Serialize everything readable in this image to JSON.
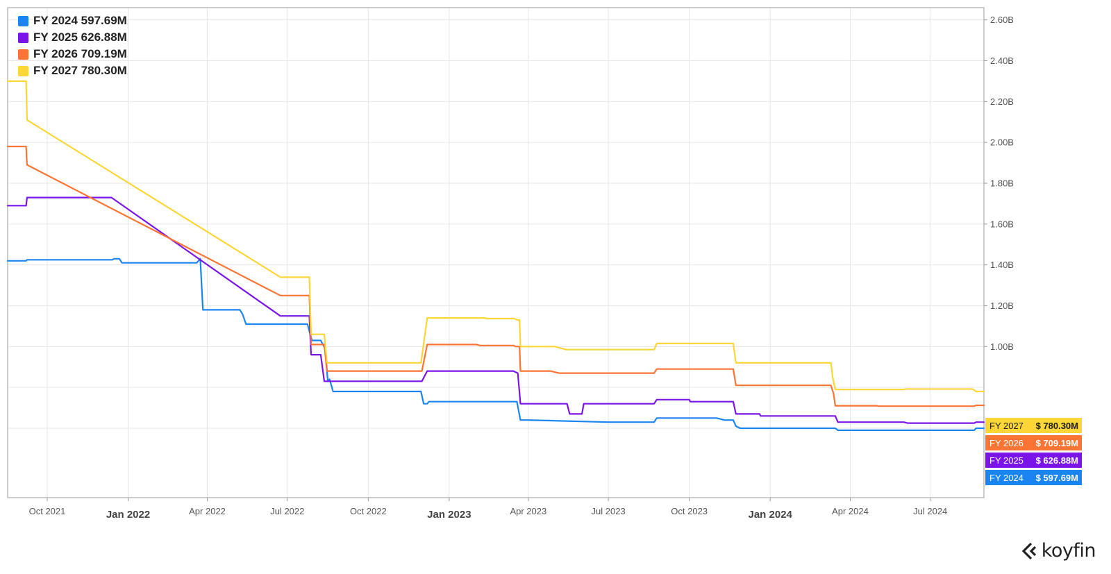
{
  "brand": {
    "name": "koyfin"
  },
  "chart_data": {
    "type": "line",
    "title": "",
    "xlabel": "",
    "ylabel": "",
    "x_range": [
      "2021-08-17",
      "2024-08-31"
    ],
    "ylim": [
      0.26,
      2.66
    ],
    "y_ticks": [
      {
        "value": 2.6,
        "label": "2.60B"
      },
      {
        "value": 2.4,
        "label": "2.40B"
      },
      {
        "value": 2.2,
        "label": "2.20B"
      },
      {
        "value": 2.0,
        "label": "2.00B"
      },
      {
        "value": 1.8,
        "label": "1.80B"
      },
      {
        "value": 1.6,
        "label": "1.60B"
      },
      {
        "value": 1.4,
        "label": "1.40B"
      },
      {
        "value": 1.2,
        "label": "1.20B"
      },
      {
        "value": 1.0,
        "label": "1.00B"
      }
    ],
    "y_grid_extra": [
      0.8,
      0.6
    ],
    "x_ticks": [
      {
        "date": "2021-10-01",
        "label": "Oct 2021",
        "major": false
      },
      {
        "date": "2022-01-01",
        "label": "Jan 2022",
        "major": true
      },
      {
        "date": "2022-04-01",
        "label": "Apr 2022",
        "major": false
      },
      {
        "date": "2022-07-01",
        "label": "Jul 2022",
        "major": false
      },
      {
        "date": "2022-10-01",
        "label": "Oct 2022",
        "major": false
      },
      {
        "date": "2023-01-01",
        "label": "Jan 2023",
        "major": true
      },
      {
        "date": "2023-04-01",
        "label": "Apr 2023",
        "major": false
      },
      {
        "date": "2023-07-01",
        "label": "Jul 2023",
        "major": false
      },
      {
        "date": "2023-10-01",
        "label": "Oct 2023",
        "major": false
      },
      {
        "date": "2024-01-01",
        "label": "Jan 2024",
        "major": true
      },
      {
        "date": "2024-04-01",
        "label": "Apr 2024",
        "major": false
      },
      {
        "date": "2024-07-01",
        "label": "Jul 2024",
        "major": false
      }
    ],
    "grid": true,
    "legend_position": "top-left",
    "series": [
      {
        "name": "FY 2024",
        "legend_label": "FY 2024 597.69M",
        "tag_value": "$ 597.69M",
        "color": "#1a85f0",
        "points": [
          [
            "2021-08-17",
            1.42
          ],
          [
            "2021-09-07",
            1.42
          ],
          [
            "2021-09-08",
            1.425
          ],
          [
            "2021-12-14",
            1.425
          ],
          [
            "2021-12-16",
            1.43
          ],
          [
            "2021-12-22",
            1.43
          ],
          [
            "2021-12-25",
            1.41
          ],
          [
            "2022-03-20",
            1.41
          ],
          [
            "2022-03-24",
            1.43
          ],
          [
            "2022-03-27",
            1.18
          ],
          [
            "2022-05-08",
            1.18
          ],
          [
            "2022-05-11",
            1.16
          ],
          [
            "2022-05-15",
            1.11
          ],
          [
            "2022-07-24",
            1.11
          ],
          [
            "2022-07-27",
            1.06
          ],
          [
            "2022-07-29",
            1.03
          ],
          [
            "2022-08-08",
            1.03
          ],
          [
            "2022-08-13",
            0.99
          ],
          [
            "2022-08-16",
            0.83
          ],
          [
            "2022-08-18",
            0.84
          ],
          [
            "2022-08-22",
            0.78
          ],
          [
            "2022-11-30",
            0.78
          ],
          [
            "2022-12-03",
            0.72
          ],
          [
            "2022-12-07",
            0.72
          ],
          [
            "2022-12-09",
            0.73
          ],
          [
            "2023-03-19",
            0.73
          ],
          [
            "2023-03-23",
            0.64
          ],
          [
            "2023-04-01",
            0.64
          ],
          [
            "2023-07-01",
            0.63
          ],
          [
            "2023-08-22",
            0.63
          ],
          [
            "2023-08-25",
            0.65
          ],
          [
            "2023-11-01",
            0.65
          ],
          [
            "2023-11-10",
            0.64
          ],
          [
            "2023-11-20",
            0.64
          ],
          [
            "2023-11-23",
            0.61
          ],
          [
            "2023-11-28",
            0.6
          ],
          [
            "2024-03-15",
            0.6
          ],
          [
            "2024-03-18",
            0.59
          ],
          [
            "2024-08-20",
            0.59
          ],
          [
            "2024-08-22",
            0.6
          ],
          [
            "2024-08-31",
            0.6
          ]
        ]
      },
      {
        "name": "FY 2025",
        "legend_label": "FY 2025 626.88M",
        "tag_value": "$ 626.88M",
        "color": "#7a14e8",
        "points": [
          [
            "2021-08-17",
            1.69
          ],
          [
            "2021-09-07",
            1.69
          ],
          [
            "2021-09-08",
            1.73
          ],
          [
            "2021-12-13",
            1.73
          ],
          [
            "2022-06-23",
            1.15
          ],
          [
            "2022-07-26",
            1.15
          ],
          [
            "2022-07-28",
            0.96
          ],
          [
            "2022-08-08",
            0.96
          ],
          [
            "2022-08-12",
            0.83
          ],
          [
            "2022-12-01",
            0.83
          ],
          [
            "2022-12-07",
            0.88
          ],
          [
            "2023-03-15",
            0.88
          ],
          [
            "2023-03-20",
            0.87
          ],
          [
            "2023-03-23",
            0.72
          ],
          [
            "2023-05-15",
            0.72
          ],
          [
            "2023-05-18",
            0.67
          ],
          [
            "2023-06-01",
            0.67
          ],
          [
            "2023-06-03",
            0.72
          ],
          [
            "2023-08-22",
            0.72
          ],
          [
            "2023-08-25",
            0.74
          ],
          [
            "2023-10-01",
            0.74
          ],
          [
            "2023-10-02",
            0.73
          ],
          [
            "2023-11-20",
            0.73
          ],
          [
            "2023-11-23",
            0.67
          ],
          [
            "2023-12-20",
            0.67
          ],
          [
            "2023-12-21",
            0.66
          ],
          [
            "2024-03-15",
            0.66
          ],
          [
            "2024-03-18",
            0.63
          ],
          [
            "2024-06-01",
            0.63
          ],
          [
            "2024-06-05",
            0.625
          ],
          [
            "2024-08-20",
            0.625
          ],
          [
            "2024-08-22",
            0.63
          ],
          [
            "2024-08-31",
            0.63
          ]
        ]
      },
      {
        "name": "FY 2026",
        "legend_label": "FY 2026 709.19M",
        "tag_value": "$ 709.19M",
        "color": "#fa7534",
        "points": [
          [
            "2021-08-17",
            1.98
          ],
          [
            "2021-09-07",
            1.98
          ],
          [
            "2021-09-08",
            1.89
          ],
          [
            "2022-06-23",
            1.25
          ],
          [
            "2022-07-26",
            1.25
          ],
          [
            "2022-07-28",
            1.01
          ],
          [
            "2022-08-12",
            1.01
          ],
          [
            "2022-08-15",
            0.88
          ],
          [
            "2022-12-01",
            0.88
          ],
          [
            "2022-12-07",
            1.01
          ],
          [
            "2023-02-01",
            1.01
          ],
          [
            "2023-02-05",
            1.005
          ],
          [
            "2023-03-15",
            1.005
          ],
          [
            "2023-03-18",
            1.0
          ],
          [
            "2023-03-22",
            1.0
          ],
          [
            "2023-03-23",
            0.88
          ],
          [
            "2023-04-26",
            0.88
          ],
          [
            "2023-05-06",
            0.87
          ],
          [
            "2023-08-22",
            0.87
          ],
          [
            "2023-08-25",
            0.89
          ],
          [
            "2023-11-20",
            0.89
          ],
          [
            "2023-11-23",
            0.81
          ],
          [
            "2024-03-10",
            0.81
          ],
          [
            "2024-03-13",
            0.77
          ],
          [
            "2024-03-15",
            0.71
          ],
          [
            "2024-05-01",
            0.71
          ],
          [
            "2024-05-03",
            0.708
          ],
          [
            "2024-08-20",
            0.708
          ],
          [
            "2024-08-22",
            0.712
          ],
          [
            "2024-08-31",
            0.712
          ]
        ]
      },
      {
        "name": "FY 2027",
        "legend_label": "FY 2027 780.30M",
        "tag_value": "$ 780.30M",
        "color": "#fcd537",
        "points": [
          [
            "2021-08-17",
            2.3
          ],
          [
            "2021-09-07",
            2.3
          ],
          [
            "2021-09-08",
            2.11
          ],
          [
            "2022-06-23",
            1.34
          ],
          [
            "2022-07-26",
            1.34
          ],
          [
            "2022-07-28",
            1.06
          ],
          [
            "2022-08-12",
            1.06
          ],
          [
            "2022-08-15",
            0.92
          ],
          [
            "2022-11-30",
            0.92
          ],
          [
            "2022-12-07",
            1.14
          ],
          [
            "2023-02-10",
            1.14
          ],
          [
            "2023-02-13",
            1.137
          ],
          [
            "2023-03-16",
            1.137
          ],
          [
            "2023-03-20",
            1.13
          ],
          [
            "2023-03-22",
            1.13
          ],
          [
            "2023-03-23",
            1.0
          ],
          [
            "2023-05-01",
            1.0
          ],
          [
            "2023-05-14",
            0.985
          ],
          [
            "2023-08-22",
            0.985
          ],
          [
            "2023-08-25",
            1.015
          ],
          [
            "2023-11-20",
            1.015
          ],
          [
            "2023-11-23",
            0.92
          ],
          [
            "2024-03-10",
            0.92
          ],
          [
            "2024-03-12",
            0.85
          ],
          [
            "2024-03-15",
            0.79
          ],
          [
            "2024-06-01",
            0.79
          ],
          [
            "2024-06-03",
            0.792
          ],
          [
            "2024-08-18",
            0.792
          ],
          [
            "2024-08-22",
            0.78
          ],
          [
            "2024-08-31",
            0.78
          ]
        ]
      }
    ]
  }
}
